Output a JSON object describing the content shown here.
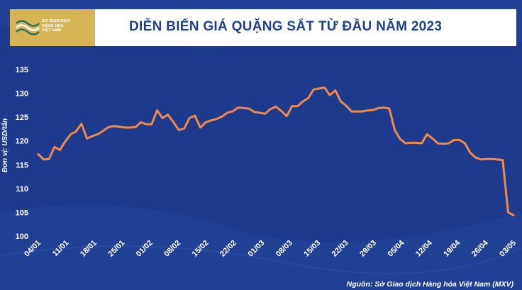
{
  "header": {
    "logo_lines": "SỞ GIAO DỊCH\nHÀNG HÓA\nVIỆT NAM",
    "title": "DIỄN BIẾN GIÁ QUẶNG SẮT TỪ ĐẦU NĂM 2023"
  },
  "source": "Nguồn: Sở Giao dịch Hàng hóa Việt Nam (MXV)",
  "colors": {
    "background": "#1d3a8c",
    "line": "#f08a4b",
    "title": "#1f3f8f",
    "logo_gold": "#d7b456"
  },
  "chart_data": {
    "type": "line",
    "title": "DIỄN BIẾN GIÁ QUẶNG SẮT TỪ ĐẦU NĂM 2023",
    "ylabel": "Đơn vị: USD/tấn",
    "xlabel": "",
    "ylim": [
      100,
      135
    ],
    "yticks": [
      100,
      105,
      110,
      115,
      120,
      125,
      130,
      135
    ],
    "xticks": [
      "04/01",
      "11/01",
      "18/01",
      "25/01",
      "01/02",
      "08/02",
      "15/02",
      "22/02",
      "01/03",
      "08/03",
      "15/03",
      "22/03",
      "29/03",
      "05/04",
      "12/04",
      "19/04",
      "26/04",
      "03/05"
    ],
    "grid": false,
    "values": [
      117.2,
      116.1,
      116.2,
      118.7,
      118.1,
      119.9,
      121.4,
      122.0,
      123.6,
      120.5,
      121.0,
      121.4,
      122.1,
      122.9,
      123.1,
      123.0,
      122.8,
      122.8,
      122.9,
      123.9,
      123.5,
      123.5,
      126.4,
      124.8,
      125.5,
      124.0,
      122.3,
      122.6,
      124.8,
      125.3,
      122.8,
      123.9,
      124.3,
      124.6,
      125.1,
      125.9,
      126.2,
      127.0,
      126.9,
      126.8,
      126.1,
      125.9,
      125.7,
      126.7,
      127.2,
      126.3,
      125.2,
      127.3,
      127.3,
      128.3,
      129.0,
      130.8,
      131.0,
      131.2,
      129.6,
      130.6,
      128.3,
      127.4,
      126.2,
      126.2,
      126.2,
      126.4,
      126.5,
      126.9,
      127.0,
      126.8,
      122.3,
      120.4,
      119.5,
      119.6,
      119.6,
      119.5,
      121.4,
      120.5,
      119.5,
      119.4,
      119.5,
      120.2,
      120.2,
      119.5,
      117.5,
      116.5,
      116.1,
      116.2,
      116.2,
      116.1,
      116.0,
      105.0,
      104.4
    ]
  }
}
